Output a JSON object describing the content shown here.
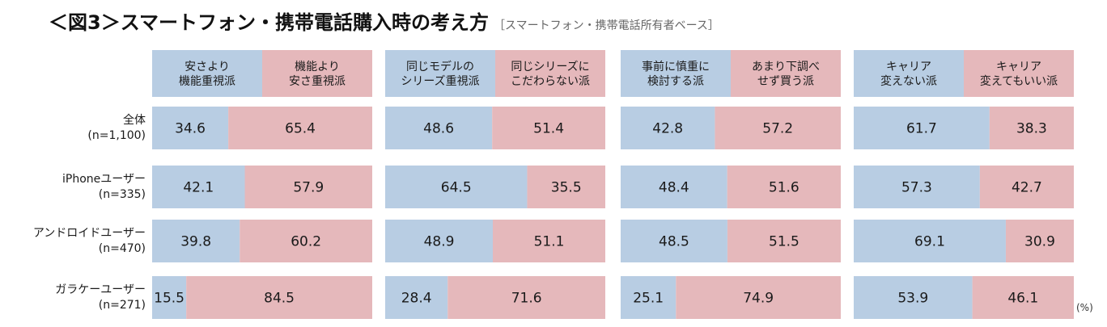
{
  "title": "＜図3＞スマートフォン・携帯電話購入時の考え方",
  "subtitle": "［スマートフォン・携帯電話所有者ベース］",
  "unit_label": "(%)",
  "colors": {
    "blue": "#b8cde3",
    "pink": "#e5b8bb"
  },
  "chart_data": {
    "type": "bar",
    "orientation": "horizontal-stacked-100",
    "groups": [
      {
        "left_label": "安さより\n機能重視派",
        "right_label": "機能より\n安さ重視派"
      },
      {
        "left_label": "同じモデルの\nシリーズ重視派",
        "right_label": "同じシリーズに\nこだわらない派"
      },
      {
        "left_label": "事前に慎重に\n検討する派",
        "right_label": "あまり下調べ\nせず買う派"
      },
      {
        "left_label": "キャリア\n変えない派",
        "right_label": "キャリア\n変えてもいい派"
      }
    ],
    "rows": [
      {
        "label": "全体",
        "n": "(n=1,100)"
      },
      {
        "label": "iPhoneユーザー",
        "n": "(n=335)"
      },
      {
        "label": "アンドロイドユーザー",
        "n": "(n=470)"
      },
      {
        "label": "ガラケーユーザー",
        "n": "(n=271)"
      }
    ],
    "values": [
      [
        [
          34.6,
          65.4
        ],
        [
          48.6,
          51.4
        ],
        [
          42.8,
          57.2
        ],
        [
          61.7,
          38.3
        ]
      ],
      [
        [
          42.1,
          57.9
        ],
        [
          64.5,
          35.5
        ],
        [
          48.4,
          51.6
        ],
        [
          57.3,
          42.7
        ]
      ],
      [
        [
          39.8,
          60.2
        ],
        [
          48.9,
          51.1
        ],
        [
          48.5,
          51.5
        ],
        [
          69.1,
          30.9
        ]
      ],
      [
        [
          15.5,
          84.5
        ],
        [
          28.4,
          71.6
        ],
        [
          25.1,
          74.9
        ],
        [
          53.9,
          46.1
        ]
      ]
    ]
  }
}
